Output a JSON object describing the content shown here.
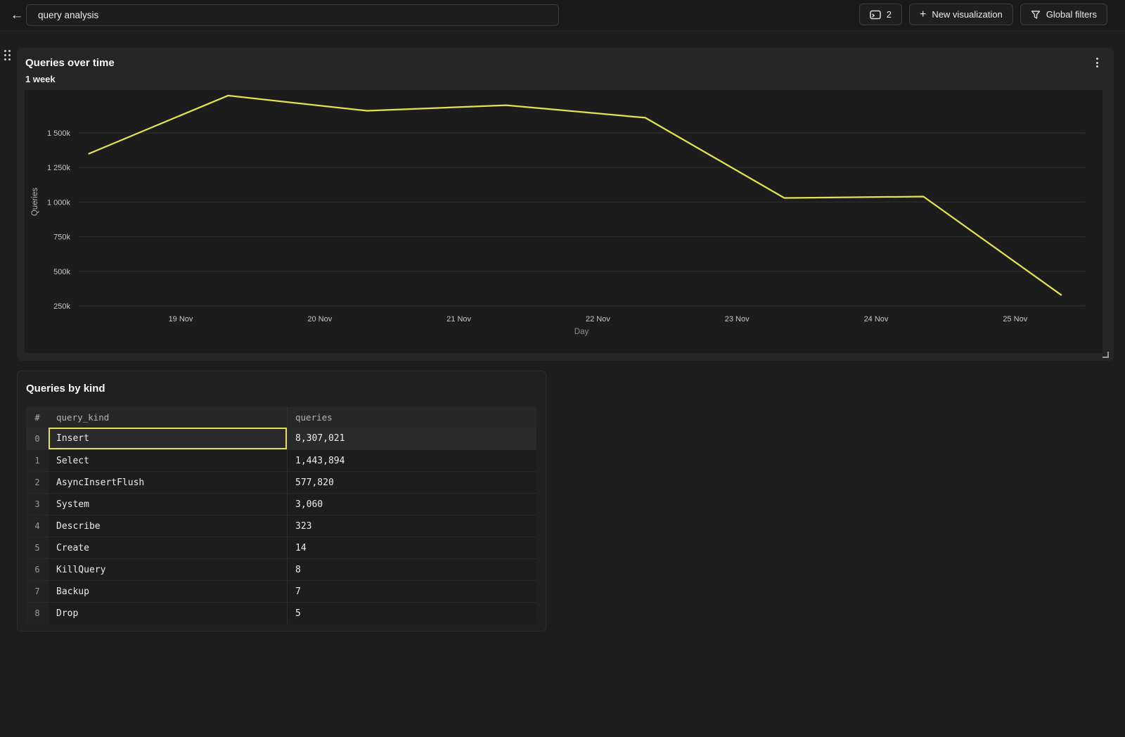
{
  "topbar": {
    "back_glyph": "←",
    "title_value": "query analysis",
    "panels_button": {
      "count": "2"
    },
    "new_visualization_button": {
      "plus": "+",
      "label": "New visualization"
    },
    "global_filters_button": {
      "label": "Global filters"
    }
  },
  "chart_card": {
    "title": "Queries over time",
    "subtitle": "1 week"
  },
  "chart_data": {
    "type": "line",
    "title": "Queries over time",
    "subtitle": "1 week",
    "xlabel": "Day",
    "ylabel": "Queries",
    "grid": true,
    "legend": false,
    "y_ticks": [
      {
        "label": "250k",
        "value": 250000
      },
      {
        "label": "500k",
        "value": 500000
      },
      {
        "label": "750k",
        "value": 750000
      },
      {
        "label": "1 000k",
        "value": 1000000
      },
      {
        "label": "1 250k",
        "value": 1250000
      },
      {
        "label": "1 500k",
        "value": 1500000
      }
    ],
    "x_ticks": [
      {
        "label": "19 Nov",
        "day_offset": 0
      },
      {
        "label": "20 Nov",
        "day_offset": 1
      },
      {
        "label": "21 Nov",
        "day_offset": 2
      },
      {
        "label": "22 Nov",
        "day_offset": 3
      },
      {
        "label": "23 Nov",
        "day_offset": 4
      },
      {
        "label": "24 Nov",
        "day_offset": 5
      },
      {
        "label": "25 Nov",
        "day_offset": 6
      }
    ],
    "series": [
      {
        "name": "Queries",
        "color": "#e3e34f",
        "points": [
          {
            "day_offset": -0.66,
            "value": 1350000
          },
          {
            "day_offset": 0.34,
            "value": 1770000
          },
          {
            "day_offset": 1.34,
            "value": 1660000
          },
          {
            "day_offset": 2.34,
            "value": 1700000
          },
          {
            "day_offset": 3.34,
            "value": 1610000
          },
          {
            "day_offset": 4.34,
            "value": 1030000
          },
          {
            "day_offset": 5.34,
            "value": 1040000
          },
          {
            "day_offset": 6.33,
            "value": 330000
          }
        ]
      }
    ]
  },
  "table_card": {
    "title": "Queries by kind",
    "columns": [
      "#",
      "query_kind",
      "queries"
    ],
    "rows": [
      {
        "index": "0",
        "query_kind": "Insert",
        "queries": "8,307,021",
        "selected_cell": "query_kind"
      },
      {
        "index": "1",
        "query_kind": "Select",
        "queries": "1,443,894"
      },
      {
        "index": "2",
        "query_kind": "AsyncInsertFlush",
        "queries": "577,820"
      },
      {
        "index": "3",
        "query_kind": "System",
        "queries": "3,060"
      },
      {
        "index": "4",
        "query_kind": "Describe",
        "queries": "323"
      },
      {
        "index": "5",
        "query_kind": "Create",
        "queries": "14"
      },
      {
        "index": "6",
        "query_kind": "KillQuery",
        "queries": "8"
      },
      {
        "index": "7",
        "query_kind": "Backup",
        "queries": "7"
      },
      {
        "index": "8",
        "query_kind": "Drop",
        "queries": "5"
      }
    ]
  },
  "colors": {
    "accent_yellow": "#e3e34f",
    "page_bg": "#1d1d1d",
    "card_bg": "#262626",
    "plot_bg": "#1c1c1c"
  }
}
